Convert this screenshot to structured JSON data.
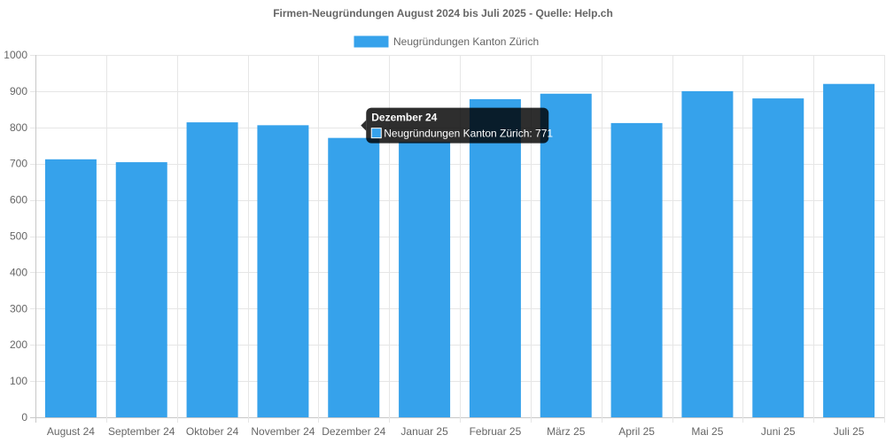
{
  "chart_data": {
    "type": "bar",
    "title": "Firmen-Neugründungen August 2024 bis Juli 2025 - Quelle: Help.ch",
    "categories": [
      "August 24",
      "September 24",
      "Oktober 24",
      "November 24",
      "Dezember 24",
      "Januar 25",
      "Februar 25",
      "März 25",
      "April 25",
      "Mai 25",
      "Juni 25",
      "Juli 25"
    ],
    "series": [
      {
        "name": "Neugründungen  Kanton Zürich",
        "color": "#36a2eb",
        "values": [
          712,
          704,
          814,
          806,
          771,
          760,
          878,
          893,
          812,
          900,
          880,
          920
        ]
      }
    ],
    "ylim": [
      0,
      1000
    ],
    "yticks": [
      0,
      100,
      200,
      300,
      400,
      500,
      600,
      700,
      800,
      900,
      1000
    ],
    "grid": true,
    "legend_position": "top-center",
    "tooltip": {
      "title": "Dezember 24",
      "body": "Neugründungen  Kanton Zürich: 771",
      "category_index": 4
    }
  }
}
